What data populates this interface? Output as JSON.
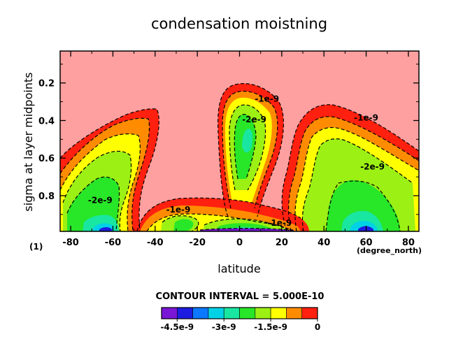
{
  "chart_data": {
    "type": "contour",
    "title": "condensation moistning",
    "xlabel": "latitude",
    "ylabel": "sigma at layer midpoints",
    "x_units": "(degree_north)",
    "y_units": "(1)",
    "xlim": [
      -85,
      85
    ],
    "ylim": [
      0.99,
      0.03
    ],
    "x_ticks": [
      -80,
      -60,
      -40,
      -20,
      0,
      20,
      40,
      60,
      80
    ],
    "x_tick_labels": [
      "-80",
      "-60",
      "-40",
      "-20",
      "0",
      "20",
      "40",
      "60",
      "80"
    ],
    "y_ticks": [
      0.2,
      0.4,
      0.6,
      0.8
    ],
    "y_tick_labels": [
      "0.2",
      "0.4",
      "0.6",
      "0.8"
    ],
    "contour_interval_text": "CONTOUR INTERVAL = 5.000E-10",
    "colorbar": {
      "levels": [
        -5e-09,
        -4.5e-09,
        -4e-09,
        -3.5e-09,
        -3e-09,
        -2.5e-09,
        -2e-09,
        -1.5e-09,
        -1e-09,
        -5e-10,
        0
      ],
      "colors": [
        "#7a16d6",
        "#1c1ce0",
        "#0a78ff",
        "#00d2e6",
        "#19e6a0",
        "#28e628",
        "#9cf014",
        "#ffff00",
        "#ff8c00",
        "#ff2010",
        "#ffa0a0"
      ],
      "tick_values": [
        -4.5e-09,
        -3e-09,
        -1.5e-09,
        0
      ],
      "tick_labels": [
        "-4.5e-9",
        "-3e-9",
        "-1.5e-9",
        "0"
      ]
    },
    "contour_labels": [
      {
        "text": "-2e-9",
        "x": -66,
        "y": 0.84
      },
      {
        "text": "-1e-9",
        "x": -29,
        "y": 0.89
      },
      {
        "text": "-2e-9",
        "x": 7,
        "y": 0.41
      },
      {
        "text": "-1e-9",
        "x": 13,
        "y": 0.3
      },
      {
        "text": "-1e-9",
        "x": 60,
        "y": 0.4
      },
      {
        "text": "-2e-9",
        "x": 63,
        "y": 0.66
      },
      {
        "text": "-1e-9",
        "x": 19,
        "y": 0.96
      }
    ],
    "colors": {
      "background": "#ffa0a0"
    }
  }
}
